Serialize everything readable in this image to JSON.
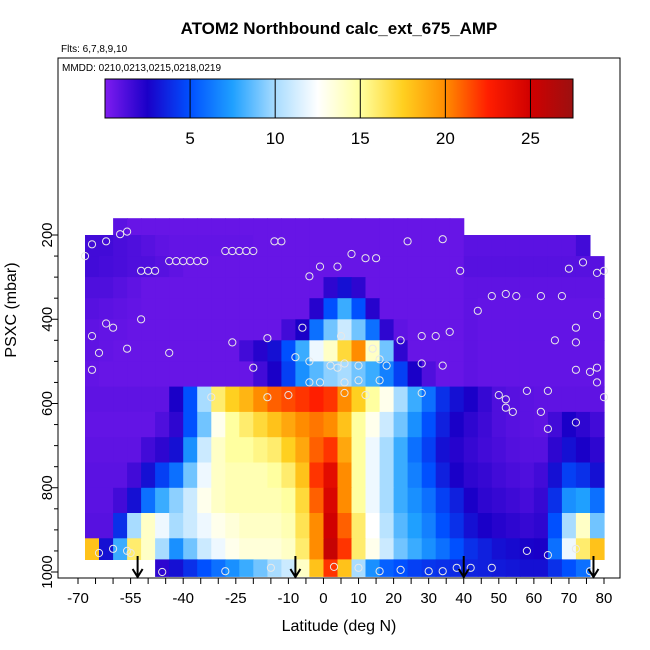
{
  "chart_data": {
    "type": "heatmap",
    "title": "ATOM2 Northbound calc_ext_675_AMP",
    "subtitle_flights": "Flts: 6,7,8,9,10",
    "subtitle_dates": "MMDD: 0210,0213,0215,0218,0219",
    "xlabel": "Latitude (deg N)",
    "ylabel": "PSXC (mbar)",
    "xlim": [
      -70,
      80
    ],
    "ylim": [
      1000,
      0
    ],
    "x_tick_labels": [
      "-70",
      "-55",
      "-40",
      "-25",
      "-10",
      "0",
      "10",
      "20",
      "30",
      "40",
      "50",
      "60",
      "70",
      "80"
    ],
    "y_tick_labels": [
      "200",
      "400",
      "600",
      "800",
      "1000"
    ],
    "colorbar": {
      "range": [
        0,
        27.5
      ],
      "tick_labels": [
        "5",
        "10",
        "15",
        "20",
        "25"
      ],
      "colors": [
        "#7f1cf0",
        "#1a00c8",
        "#0050ff",
        "#1fa0ff",
        "#a8dcff",
        "#ffffff",
        "#ffffa0",
        "#ffd020",
        "#ff8c00",
        "#ff1e00",
        "#d00000",
        "#9c1010"
      ]
    },
    "arrow_latitudes": [
      -53,
      -8,
      40,
      77
    ],
    "cells": {
      "lat_edges": [
        -68,
        -64,
        -60,
        -56,
        -52,
        -48,
        -44,
        -40,
        -36,
        -32,
        -28,
        -24,
        -20,
        -16,
        -12,
        -8,
        -4,
        0,
        4,
        8,
        12,
        16,
        20,
        24,
        28,
        32,
        36,
        40,
        44,
        48,
        52,
        56,
        60,
        64,
        68,
        72,
        76,
        80
      ],
      "bands": [
        {
          "p": [
            160,
            200
          ],
          "values": [
            0,
            0,
            0.9,
            0.6,
            0.6,
            0.6,
            0.6,
            0.6,
            0.6,
            0.6,
            0.6,
            0.6,
            0.6,
            0.6,
            0.6,
            0.6,
            0.6,
            0.6,
            0.6,
            0.6,
            0.6,
            0.6,
            0.6,
            0.6,
            0.6,
            0.6,
            0.6,
            0,
            0,
            0,
            0,
            0,
            0,
            0,
            0,
            0,
            0
          ]
        },
        {
          "p": [
            200,
            250
          ],
          "values": [
            1.5,
            1.5,
            1.3,
            1.2,
            1.0,
            0.8,
            0.7,
            0.7,
            0.7,
            0.7,
            0.7,
            0.7,
            0.6,
            0.6,
            0.6,
            0.6,
            0.6,
            0.6,
            0.6,
            0.6,
            0.6,
            0.6,
            0.6,
            0.6,
            0.6,
            0.6,
            0.6,
            0.9,
            0.9,
            0.9,
            0.9,
            0.9,
            0.9,
            0.9,
            0.9,
            1.5,
            0
          ]
        },
        {
          "p": [
            250,
            300
          ],
          "values": [
            1.5,
            1.4,
            1.3,
            1.2,
            1.2,
            1.0,
            0.8,
            0.6,
            0.6,
            0.6,
            0.6,
            0.6,
            0.6,
            0.6,
            0.6,
            0.6,
            0.6,
            0.6,
            0.6,
            0.6,
            0.6,
            0.6,
            0.6,
            0.6,
            0.6,
            0.6,
            0.6,
            1.0,
            1.0,
            1.0,
            1.0,
            1.0,
            1.0,
            1.0,
            1.0,
            1.0,
            1.0
          ]
        },
        {
          "p": [
            300,
            350
          ],
          "values": [
            1.2,
            1.2,
            1.0,
            0.8,
            0.6,
            0.6,
            0.6,
            0.6,
            0.6,
            0.6,
            0.6,
            0.6,
            0.6,
            0.6,
            0.6,
            0.6,
            0.6,
            2.0,
            3.0,
            2.0,
            0.6,
            0.6,
            0.6,
            0.6,
            0.6,
            0.6,
            0.6,
            0.8,
            0.8,
            0.8,
            0.8,
            0.8,
            0.8,
            0.8,
            0.8,
            0.8,
            0.8
          ]
        },
        {
          "p": [
            350,
            400
          ],
          "values": [
            1.0,
            0.9,
            0.8,
            0.7,
            0.6,
            0.6,
            0.6,
            0.6,
            0.6,
            0.6,
            0.6,
            0.6,
            0.6,
            0.6,
            0.6,
            0.6,
            2.2,
            5.0,
            8.0,
            5.0,
            2.2,
            0.6,
            0.6,
            0.6,
            0.6,
            0.6,
            0.6,
            0.8,
            0.7,
            0.7,
            0.7,
            0.7,
            0.7,
            0.7,
            0.7,
            0.7,
            0.7
          ]
        },
        {
          "p": [
            400,
            450
          ],
          "values": [
            0.8,
            0.7,
            0.7,
            0.6,
            0.6,
            0.6,
            0.6,
            0.6,
            0.6,
            0.6,
            0.6,
            0.6,
            0.6,
            0.6,
            1.5,
            2.5,
            6.0,
            9.0,
            11.0,
            9.0,
            6.0,
            2.0,
            0.8,
            0.6,
            0.6,
            0.6,
            0.6,
            0.8,
            0.7,
            0.7,
            0.7,
            0.7,
            0.7,
            0.7,
            0.7,
            0.7,
            0.7
          ]
        },
        {
          "p": [
            450,
            500
          ],
          "values": [
            0.8,
            0.7,
            0.6,
            0.6,
            0.6,
            0.6,
            0.6,
            0.6,
            0.6,
            0.6,
            0.6,
            1.5,
            2.2,
            3.0,
            5.0,
            8.0,
            12.0,
            14.0,
            17.0,
            20.0,
            14.0,
            9.0,
            2.0,
            0.6,
            0.6,
            0.6,
            0.6,
            0.8,
            0.7,
            0.7,
            0.7,
            0.7,
            0.7,
            0.7,
            0.7,
            0.7,
            0.7
          ]
        },
        {
          "p": [
            500,
            560
          ],
          "values": [
            0.7,
            0.6,
            0.6,
            0.6,
            0.6,
            0.6,
            0.6,
            0.6,
            0.6,
            0.6,
            0.6,
            0.6,
            1.5,
            2.5,
            4.5,
            7.0,
            8.5,
            9.5,
            10.0,
            9.0,
            8.0,
            6.5,
            4.5,
            2.5,
            1.2,
            0.6,
            0.6,
            0.8,
            0.7,
            0.7,
            0.7,
            0.7,
            0.7,
            0.7,
            0.7,
            0.7,
            0.7
          ]
        },
        {
          "p": [
            560,
            620
          ],
          "values": [
            0.8,
            0.8,
            0.8,
            0.8,
            0.8,
            0.8,
            2.5,
            5.0,
            10.0,
            16.0,
            17.5,
            18.5,
            20.0,
            21.0,
            21.5,
            22.0,
            22.5,
            22.0,
            20.0,
            17.5,
            15.0,
            13.0,
            10.0,
            8.0,
            6.0,
            4.0,
            3.0,
            2.5,
            1.8,
            1.2,
            1.0,
            0.9,
            0.8,
            0.8,
            0.8,
            0.8,
            0.8
          ]
        },
        {
          "p": [
            620,
            680
          ],
          "values": [
            0.7,
            0.7,
            0.7,
            0.7,
            0.7,
            1.2,
            2.0,
            5.0,
            9.0,
            13.0,
            15.0,
            16.0,
            17.0,
            18.0,
            19.0,
            20.0,
            20.5,
            20.0,
            18.0,
            15.0,
            13.0,
            11.0,
            9.0,
            7.0,
            5.0,
            3.5,
            2.5,
            2.0,
            1.6,
            1.2,
            1.0,
            0.9,
            0.8,
            1.5,
            2.5,
            2.0,
            1.5
          ]
        },
        {
          "p": [
            680,
            740
          ],
          "values": [
            0.8,
            0.8,
            0.8,
            0.8,
            1.5,
            2.0,
            3.0,
            7.0,
            11.0,
            14.0,
            15.0,
            15.0,
            15.5,
            16.0,
            17.5,
            19.0,
            21.0,
            22.0,
            19.0,
            15.0,
            12.0,
            10.0,
            8.0,
            6.0,
            4.5,
            3.0,
            2.2,
            1.8,
            1.5,
            1.3,
            1.1,
            1.0,
            1.0,
            2.0,
            3.0,
            2.5,
            2.0
          ]
        },
        {
          "p": [
            740,
            800
          ],
          "values": [
            0.9,
            0.9,
            0.9,
            1.5,
            3.0,
            4.5,
            6.0,
            9.0,
            12.0,
            14.0,
            14.5,
            14.5,
            14.5,
            15.0,
            16.0,
            18.0,
            22.0,
            24.0,
            20.0,
            15.0,
            12.0,
            10.0,
            8.0,
            6.5,
            5.0,
            3.5,
            2.5,
            2.0,
            1.8,
            1.5,
            1.3,
            1.2,
            1.5,
            3.0,
            4.5,
            4.0,
            3.0
          ]
        },
        {
          "p": [
            800,
            860
          ],
          "values": [
            0.9,
            0.9,
            1.5,
            3.0,
            6.0,
            8.0,
            9.5,
            11.0,
            13.0,
            14.0,
            14.5,
            14.5,
            14.5,
            14.5,
            15.0,
            17.0,
            21.0,
            24.5,
            20.0,
            15.0,
            12.0,
            10.0,
            8.0,
            7.0,
            6.0,
            4.5,
            3.5,
            2.5,
            2.0,
            1.8,
            1.6,
            1.4,
            1.8,
            4.0,
            7.0,
            7.5,
            6.0
          ]
        },
        {
          "p": [
            860,
            920
          ],
          "values": [
            1.0,
            1.0,
            4.0,
            10.0,
            14.0,
            12.0,
            10.0,
            11.0,
            12.0,
            13.0,
            13.5,
            14.0,
            14.0,
            14.0,
            14.5,
            16.5,
            20.0,
            25.0,
            21.0,
            16.0,
            12.5,
            10.5,
            8.5,
            7.5,
            6.5,
            5.0,
            4.0,
            3.0,
            2.5,
            2.2,
            2.0,
            1.8,
            2.0,
            5.0,
            10.0,
            14.0,
            9.0
          ]
        },
        {
          "p": [
            920,
            970
          ],
          "values": [
            18.0,
            3.0,
            8.0,
            16.0,
            14.0,
            10.0,
            7.0,
            9.0,
            11.0,
            12.0,
            13.0,
            13.5,
            13.5,
            13.5,
            14.0,
            16.0,
            20.0,
            25.5,
            22.0,
            16.0,
            13.0,
            11.0,
            9.0,
            8.0,
            7.0,
            6.0,
            5.0,
            4.0,
            3.5,
            3.0,
            2.8,
            2.6,
            2.5,
            6.0,
            12.0,
            16.0,
            18.0
          ]
        },
        {
          "p": [
            970,
            1010
          ],
          "values": [
            0,
            0,
            0,
            0,
            0,
            2.0,
            3.0,
            4.0,
            5.0,
            6.0,
            7.0,
            8.0,
            9.0,
            10.0,
            11.0,
            14.0,
            18.0,
            22.0,
            18.0,
            10.0,
            7.0,
            5.5,
            5.0,
            4.5,
            4.2,
            4.0,
            3.8,
            3.6,
            3.5,
            3.3,
            3.2,
            3.0,
            3.0,
            4.0,
            5.0,
            6.0,
            0
          ]
        }
      ]
    },
    "sample_points": [
      [
        -56,
        192
      ],
      [
        -58,
        198
      ],
      [
        -62,
        215
      ],
      [
        -66,
        222
      ],
      [
        -68,
        250
      ],
      [
        -52,
        285
      ],
      [
        -50,
        285
      ],
      [
        -48,
        285
      ],
      [
        -44,
        262
      ],
      [
        -42,
        262
      ],
      [
        -40,
        262
      ],
      [
        -38,
        262
      ],
      [
        -36,
        262
      ],
      [
        -34,
        262
      ],
      [
        -28,
        238
      ],
      [
        -26,
        238
      ],
      [
        -24,
        238
      ],
      [
        -22,
        238
      ],
      [
        -20,
        238
      ],
      [
        -14,
        215
      ],
      [
        -12,
        215
      ],
      [
        -4,
        298
      ],
      [
        -1,
        275
      ],
      [
        4,
        275
      ],
      [
        8,
        245
      ],
      [
        12,
        255
      ],
      [
        15,
        255
      ],
      [
        24,
        215
      ],
      [
        34,
        210
      ],
      [
        39,
        285
      ],
      [
        52,
        340
      ],
      [
        48,
        345
      ],
      [
        55,
        345
      ],
      [
        62,
        345
      ],
      [
        68,
        345
      ],
      [
        44,
        380
      ],
      [
        -62,
        410
      ],
      [
        -52,
        400
      ],
      [
        -60,
        420
      ],
      [
        -66,
        440
      ],
      [
        -64,
        480
      ],
      [
        -56,
        470
      ],
      [
        -44,
        480
      ],
      [
        -26,
        455
      ],
      [
        -16,
        445
      ],
      [
        -6,
        420
      ],
      [
        5,
        440
      ],
      [
        -8,
        490
      ],
      [
        -4,
        500
      ],
      [
        2,
        510
      ],
      [
        6,
        505
      ],
      [
        10,
        510
      ],
      [
        16,
        495
      ],
      [
        14,
        470
      ],
      [
        22,
        450
      ],
      [
        28,
        440
      ],
      [
        32,
        440
      ],
      [
        36,
        430
      ],
      [
        -66,
        520
      ],
      [
        -32,
        585
      ],
      [
        -20,
        515
      ],
      [
        4,
        515
      ],
      [
        18,
        510
      ],
      [
        28,
        505
      ],
      [
        34,
        510
      ],
      [
        -1,
        550
      ],
      [
        -4,
        550
      ],
      [
        6,
        550
      ],
      [
        10,
        545
      ],
      [
        16,
        545
      ],
      [
        -10,
        580
      ],
      [
        -16,
        585
      ],
      [
        6,
        575
      ],
      [
        12,
        580
      ],
      [
        28,
        575
      ],
      [
        58,
        570
      ],
      [
        64,
        570
      ],
      [
        72,
        520
      ],
      [
        76,
        525
      ],
      [
        78,
        515
      ],
      [
        78,
        550
      ],
      [
        80,
        585
      ],
      [
        72,
        455
      ],
      [
        66,
        450
      ],
      [
        72,
        420
      ],
      [
        78,
        390
      ],
      [
        70,
        280
      ],
      [
        78,
        290
      ],
      [
        80,
        285
      ],
      [
        74,
        265
      ],
      [
        50,
        580
      ],
      [
        52,
        590
      ],
      [
        52,
        610
      ],
      [
        54,
        620
      ],
      [
        62,
        620
      ],
      [
        64,
        660
      ],
      [
        72,
        645
      ],
      [
        -64,
        955
      ],
      [
        -60,
        945
      ],
      [
        -56,
        950
      ],
      [
        -55,
        955
      ],
      [
        -46,
        1000
      ],
      [
        -28,
        998
      ],
      [
        -15,
        990
      ],
      [
        3,
        988
      ],
      [
        10,
        990
      ],
      [
        16,
        998
      ],
      [
        22,
        995
      ],
      [
        30,
        998
      ],
      [
        34,
        998
      ],
      [
        38,
        990
      ],
      [
        42,
        990
      ],
      [
        48,
        990
      ],
      [
        58,
        950
      ],
      [
        64,
        960
      ],
      [
        72,
        945
      ],
      [
        76,
        998
      ]
    ]
  }
}
